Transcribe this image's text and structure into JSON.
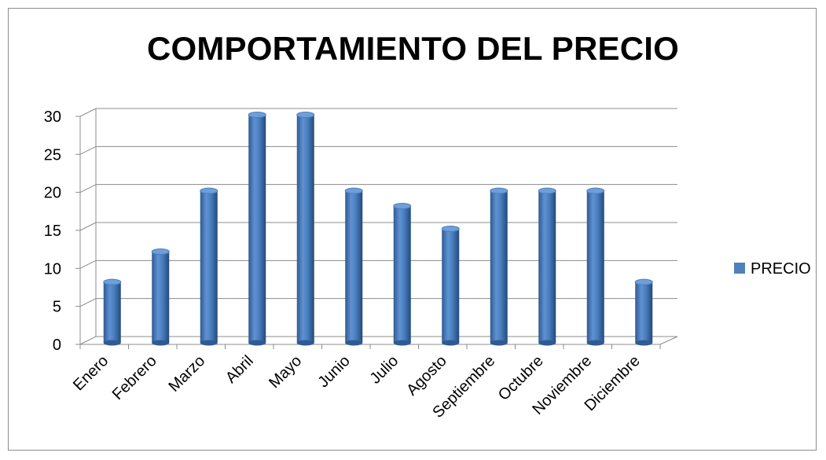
{
  "chart_data": {
    "type": "bar",
    "title": "COMPORTAMIENTO DEL PRECIO",
    "categories": [
      "Enero",
      "Febrero",
      "Marzo",
      "Abril",
      "Mayo",
      "Junio",
      "Julio",
      "Agosto",
      "Septiembre",
      "Octubre",
      "Noviembre",
      "Diciembre"
    ],
    "series": [
      {
        "name": "PRECIO",
        "values": [
          8,
          12,
          20,
          30,
          30,
          20,
          18,
          15,
          20,
          20,
          20,
          8
        ],
        "color": "#4f81bd"
      }
    ],
    "ylim": [
      0,
      30
    ],
    "yticks": [
      0,
      5,
      10,
      15,
      20,
      25,
      30
    ],
    "grid": true,
    "legend": "right",
    "style": "3d-cylinder"
  }
}
